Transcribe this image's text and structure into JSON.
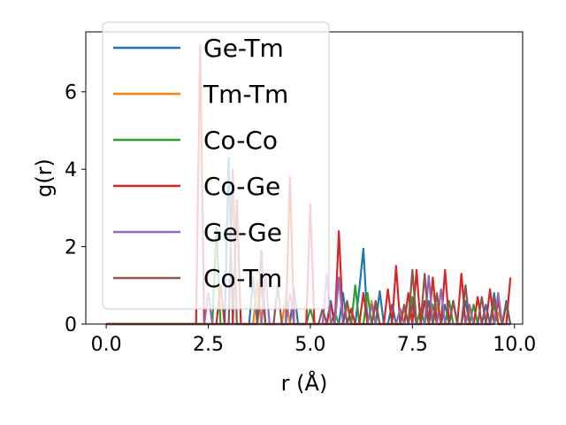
{
  "chart_data": {
    "type": "line",
    "xlabel": "r (Å)",
    "ylabel": "g(r)",
    "xlim": [
      -0.5,
      10.2
    ],
    "ylim": [
      0,
      7.55
    ],
    "xticks": [
      0.0,
      2.5,
      5.0,
      7.5,
      10.0
    ],
    "xtick_labels": [
      "0.0",
      "2.5",
      "5.0",
      "7.5",
      "10.0"
    ],
    "yticks": [
      0,
      2,
      4,
      6
    ],
    "ytick_labels": [
      "0",
      "2",
      "4",
      "6"
    ],
    "grid": false,
    "legend_position": "upper-left",
    "series": [
      {
        "name": "Ge-Tm",
        "color": "#1f77b4",
        "peaks": [
          [
            3.0,
            4.3
          ],
          [
            3.6,
            1.2
          ],
          [
            4.6,
            0.9
          ],
          [
            5.5,
            0.6
          ],
          [
            5.8,
            0.8
          ],
          [
            6.2,
            0.9
          ],
          [
            6.3,
            1.95
          ],
          [
            6.7,
            0.85
          ],
          [
            7.0,
            0.5
          ],
          [
            7.5,
            0.5
          ],
          [
            7.9,
            0.6
          ],
          [
            8.3,
            0.5
          ],
          [
            8.8,
            0.6
          ],
          [
            9.3,
            0.5
          ],
          [
            9.5,
            0.8
          ],
          [
            9.8,
            0.6
          ]
        ]
      },
      {
        "name": "Tm-Tm",
        "color": "#ff7f0e",
        "peaks": [
          [
            3.7,
            1.1
          ],
          [
            4.4,
            0.7
          ],
          [
            5.9,
            0.5
          ],
          [
            6.5,
            0.6
          ],
          [
            7.3,
            0.4
          ],
          [
            8.1,
            0.5
          ],
          [
            8.9,
            0.4
          ],
          [
            9.6,
            0.3
          ]
        ]
      },
      {
        "name": "Co-Co",
        "color": "#2ca02c",
        "peaks": [
          [
            2.7,
            2.5
          ],
          [
            5.0,
            0.4
          ],
          [
            5.6,
            0.3
          ],
          [
            6.1,
            1.0
          ],
          [
            6.4,
            0.8
          ],
          [
            7.5,
            0.7
          ],
          [
            7.7,
            0.4
          ],
          [
            8.0,
            0.5
          ],
          [
            8.4,
            0.6
          ],
          [
            9.0,
            0.5
          ],
          [
            9.5,
            0.5
          ]
        ]
      },
      {
        "name": "Co-Ge",
        "color": "#d62728",
        "peaks": [
          [
            2.3,
            7.2
          ],
          [
            2.8,
            1.0
          ],
          [
            3.2,
            3.2
          ],
          [
            3.8,
            1.1
          ],
          [
            4.5,
            3.8
          ],
          [
            5.0,
            3.1
          ],
          [
            5.5,
            0.5
          ],
          [
            5.7,
            2.4
          ],
          [
            6.0,
            0.4
          ],
          [
            6.3,
            0.8
          ],
          [
            6.6,
            0.5
          ],
          [
            6.9,
            0.9
          ],
          [
            7.1,
            1.5
          ],
          [
            7.4,
            0.8
          ],
          [
            7.6,
            1.4
          ],
          [
            7.8,
            0.6
          ],
          [
            8.0,
            1.2
          ],
          [
            8.3,
            1.4
          ],
          [
            8.5,
            0.6
          ],
          [
            8.7,
            1.3
          ],
          [
            9.1,
            0.7
          ],
          [
            9.4,
            0.9
          ],
          [
            9.6,
            0.6
          ],
          [
            9.9,
            1.2
          ]
        ]
      },
      {
        "name": "Ge-Ge",
        "color": "#9467bd",
        "peaks": [
          [
            2.5,
            0.8
          ],
          [
            3.9,
            1.3
          ],
          [
            4.5,
            0.8
          ],
          [
            5.4,
            1.3
          ],
          [
            5.7,
            1.2
          ],
          [
            6.5,
            0.5
          ],
          [
            7.2,
            0.4
          ],
          [
            7.9,
            1.25
          ],
          [
            8.2,
            0.9
          ],
          [
            8.9,
            0.5
          ],
          [
            9.6,
            0.8
          ]
        ]
      },
      {
        "name": "Co-Tm",
        "color": "#8c564b",
        "peaks": [
          [
            3.1,
            4.0
          ],
          [
            3.8,
            1.9
          ],
          [
            4.2,
            1.0
          ],
          [
            5.3,
            0.4
          ],
          [
            5.9,
            0.6
          ],
          [
            6.6,
            0.6
          ],
          [
            7.3,
            0.5
          ],
          [
            7.5,
            1.4
          ],
          [
            7.8,
            1.3
          ],
          [
            8.1,
            0.8
          ],
          [
            8.5,
            0.6
          ],
          [
            8.8,
            1.0
          ],
          [
            9.2,
            0.7
          ],
          [
            9.5,
            0.7
          ],
          [
            9.8,
            0.5
          ]
        ]
      }
    ]
  }
}
